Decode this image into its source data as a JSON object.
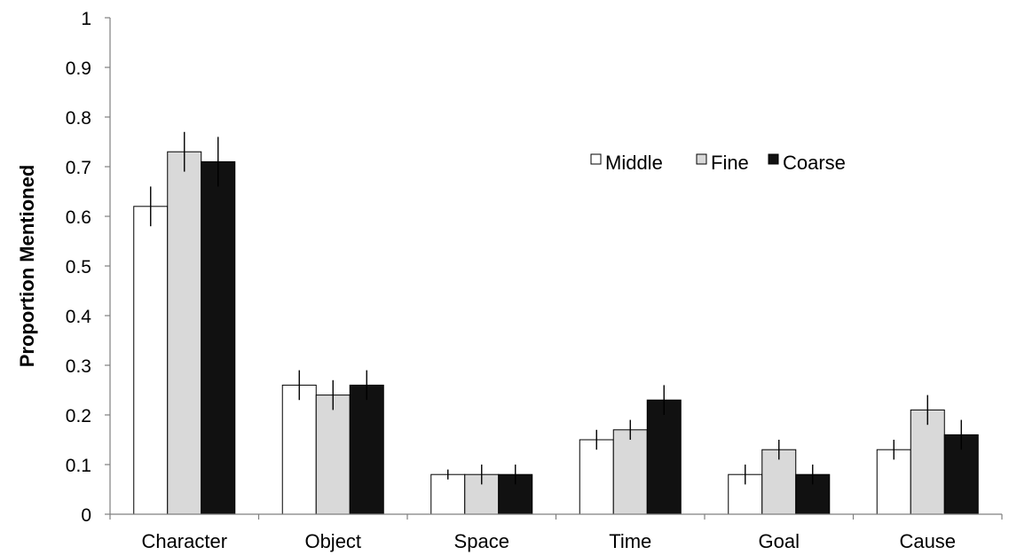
{
  "chart_data": {
    "type": "bar",
    "title": "",
    "xlabel": "",
    "ylabel": "Proportion Mentioned",
    "ylim": [
      0,
      1
    ],
    "yticks": [
      "0",
      "0.1",
      "0.2",
      "0.3",
      "0.4",
      "0.5",
      "0.6",
      "0.7",
      "0.8",
      "0.9",
      "1"
    ],
    "categories": [
      "Character",
      "Object",
      "Space",
      "Time",
      "Goal",
      "Cause"
    ],
    "series": [
      {
        "name": "Middle",
        "color": "#ffffff",
        "values": [
          0.62,
          0.26,
          0.08,
          0.15,
          0.08,
          0.13
        ],
        "error": [
          0.04,
          0.03,
          0.01,
          0.02,
          0.02,
          0.02
        ]
      },
      {
        "name": "Fine",
        "color": "#d9d9d9",
        "values": [
          0.73,
          0.24,
          0.08,
          0.17,
          0.13,
          0.21
        ],
        "error": [
          0.04,
          0.03,
          0.02,
          0.02,
          0.02,
          0.03
        ]
      },
      {
        "name": "Coarse",
        "color": "#111111",
        "values": [
          0.71,
          0.26,
          0.08,
          0.23,
          0.08,
          0.16
        ],
        "error": [
          0.05,
          0.03,
          0.02,
          0.03,
          0.02,
          0.03
        ]
      }
    ],
    "grid": false,
    "legend_position": "top-right"
  }
}
